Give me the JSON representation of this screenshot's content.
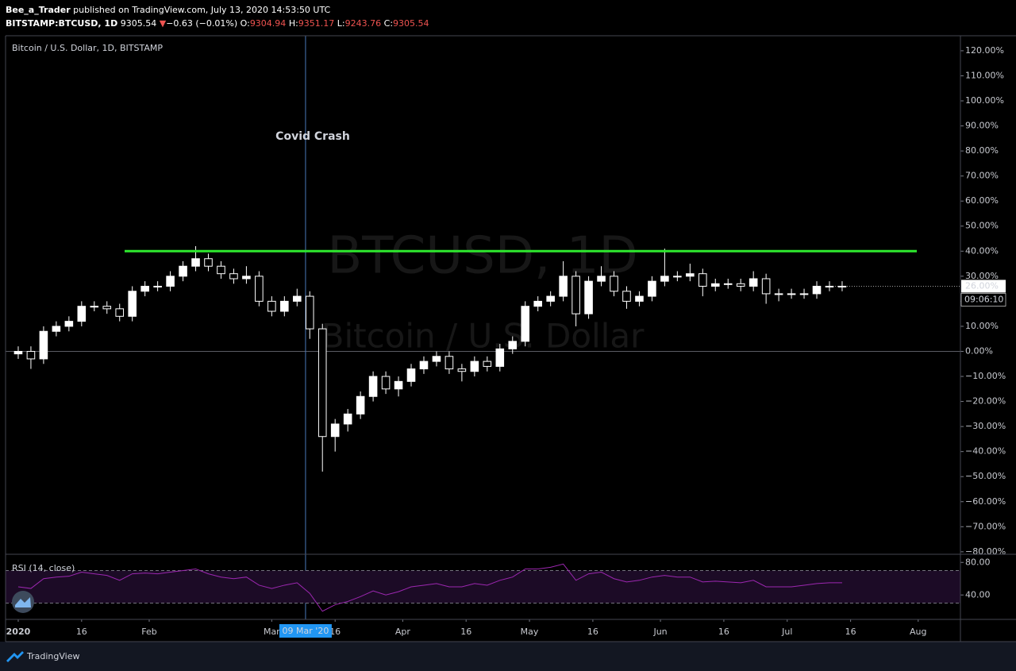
{
  "header": {
    "publisher": "Bee_a_Trader",
    "published": "published on TradingView.com, July 13, 2020 14:53:50 UTC",
    "symbol": "BITSTAMP:BTCUSD, 1D",
    "price": "9305.54",
    "change_arrow": "▼",
    "change": "−0.63 (−0.01%)",
    "ohlc": [
      {
        "label": "O:",
        "value": "9304.94"
      },
      {
        "label": "H:",
        "value": "9351.17"
      },
      {
        "label": "L:",
        "value": "9243.76"
      },
      {
        "label": "C:",
        "value": "9305.54"
      }
    ]
  },
  "footer": {
    "brand": "TradingView"
  },
  "chart_data": [
    {
      "type": "candlestick",
      "title": "Bitcoin / U.S. Dollar, 1D, BITSTAMP",
      "watermark": [
        "BTCUSD, 1D",
        "Bitcoin / U.S. Dollar"
      ],
      "x": [
        0,
        3,
        6,
        9,
        12,
        15,
        18,
        21,
        24,
        27,
        30,
        33,
        36,
        39,
        42,
        45,
        48,
        51,
        54,
        57,
        60,
        63,
        66,
        69,
        72,
        75,
        78,
        81,
        84,
        87,
        90,
        93,
        96,
        99,
        102,
        105,
        108,
        111,
        114,
        117,
        120,
        123,
        126,
        129,
        132,
        135,
        138,
        141,
        144,
        147,
        150,
        153,
        156,
        159,
        162,
        165,
        168,
        171,
        174,
        177,
        180,
        183,
        186,
        189,
        192,
        195
      ],
      "open": [
        -1,
        0,
        -3,
        8,
        10,
        12,
        18,
        18,
        17,
        14,
        24,
        26,
        26,
        30,
        34,
        37,
        34,
        31,
        29,
        30,
        20,
        16,
        20,
        22,
        9,
        -34,
        -29,
        -25,
        -18,
        -10,
        -15,
        -12,
        -7,
        -4,
        -2,
        -7,
        -8,
        -4,
        -6,
        1,
        4,
        18,
        20,
        22,
        30,
        15,
        28,
        30,
        24,
        20,
        22,
        28,
        30,
        30,
        31,
        26,
        27,
        27,
        26,
        29,
        23,
        23,
        23,
        23,
        26,
        26
      ],
      "high": [
        2,
        2,
        10,
        12,
        14,
        20,
        20,
        20,
        19,
        26,
        28,
        28,
        32,
        36,
        42,
        39,
        36,
        33,
        34,
        32,
        22,
        22,
        25,
        24,
        11,
        -27,
        -23,
        -16,
        -8,
        -8,
        -10,
        -5,
        -2,
        0,
        0,
        -5,
        -2,
        -2,
        3,
        6,
        20,
        22,
        24,
        36,
        32,
        30,
        34,
        32,
        26,
        24,
        30,
        41,
        32,
        35,
        33,
        29,
        29,
        29,
        32,
        31,
        25,
        25,
        25,
        28,
        28,
        28
      ],
      "low": [
        -3,
        -7,
        -5,
        6,
        8,
        10,
        16,
        15,
        12,
        12,
        22,
        24,
        24,
        28,
        32,
        32,
        29,
        27,
        27,
        18,
        14,
        14,
        18,
        5,
        -48,
        -40,
        -32,
        -27,
        -20,
        -17,
        -18,
        -14,
        -9,
        -6,
        -9,
        -12,
        -10,
        -8,
        -8,
        -1,
        2,
        16,
        18,
        20,
        10,
        13,
        26,
        22,
        17,
        18,
        20,
        26,
        28,
        28,
        22,
        24,
        25,
        24,
        24,
        19,
        20,
        21,
        21,
        21,
        24,
        24
      ],
      "close": [
        0,
        -3,
        8,
        10,
        12,
        18,
        18,
        17,
        14,
        24,
        26,
        26,
        30,
        34,
        37,
        34,
        31,
        29,
        30,
        20,
        16,
        20,
        22,
        9,
        -34,
        -29,
        -25,
        -18,
        -10,
        -15,
        -12,
        -7,
        -4,
        -2,
        -7,
        -8,
        -4,
        -6,
        1,
        4,
        18,
        20,
        22,
        30,
        15,
        28,
        30,
        24,
        20,
        22,
        28,
        30,
        30,
        31,
        26,
        27,
        27,
        26,
        29,
        23,
        23,
        23,
        23,
        26,
        26,
        26
      ],
      "up_color": "#ffffff",
      "down_color": "#000000",
      "wick_color": "#ffffff",
      "xlim": [
        -3,
        223
      ],
      "ylim": [
        -81,
        126
      ],
      "yticks": [
        {
          "value": 120,
          "label": "120.00%"
        },
        {
          "value": 110,
          "label": "110.00%"
        },
        {
          "value": 100,
          "label": "100.00%"
        },
        {
          "value": 90,
          "label": "90.00%"
        },
        {
          "value": 80,
          "label": "80.00%"
        },
        {
          "value": 70,
          "label": "70.00%"
        },
        {
          "value": 60,
          "label": "60.00%"
        },
        {
          "value": 50,
          "label": "50.00%"
        },
        {
          "value": 40,
          "label": "40.00%"
        },
        {
          "value": 30,
          "label": "30.00%"
        },
        {
          "value": 20,
          "label": "20.00%"
        },
        {
          "value": 10,
          "label": "10.00%"
        },
        {
          "value": 0,
          "label": "0.00%"
        },
        {
          "value": -10,
          "label": "−10.00%"
        },
        {
          "value": -20,
          "label": "−20.00%"
        },
        {
          "value": -30,
          "label": "−30.00%"
        },
        {
          "value": -40,
          "label": "−40.00%"
        },
        {
          "value": -50,
          "label": "−50.00%"
        },
        {
          "value": -60,
          "label": "−60.00%"
        },
        {
          "value": -70,
          "label": "−70.00%"
        },
        {
          "value": -80,
          "label": "−80.00%"
        }
      ],
      "xticks": [
        {
          "value": 0,
          "label": "2020"
        },
        {
          "value": 15,
          "label": "16"
        },
        {
          "value": 31,
          "label": "Feb"
        },
        {
          "value": 60,
          "label": "Mar"
        },
        {
          "value": 75,
          "label": "16"
        },
        {
          "value": 91,
          "label": "Apr"
        },
        {
          "value": 106,
          "label": "16"
        },
        {
          "value": 121,
          "label": "May"
        },
        {
          "value": 136,
          "label": "16"
        },
        {
          "value": 152,
          "label": "Jun"
        },
        {
          "value": 167,
          "label": "16"
        },
        {
          "value": 182,
          "label": "Jul"
        },
        {
          "value": 197,
          "label": "16"
        },
        {
          "value": 213,
          "label": "Aug"
        }
      ],
      "base_line": 0,
      "level_line": {
        "value": 40,
        "color": "#2ee82e"
      },
      "annotation": {
        "text": "Covid Crash",
        "color": "#2ee82e"
      },
      "crosshair": {
        "value": 68,
        "label": "09 Mar '20"
      },
      "last_price": {
        "value": 26,
        "label": "26.00%",
        "countdown": "09:06:10"
      },
      "grid": false
    },
    {
      "type": "line",
      "title": "RSI (14, close)",
      "x": [
        0,
        3,
        6,
        9,
        12,
        15,
        18,
        21,
        24,
        27,
        30,
        33,
        36,
        39,
        42,
        45,
        48,
        51,
        54,
        57,
        60,
        63,
        66,
        69,
        72,
        75,
        78,
        81,
        84,
        87,
        90,
        93,
        96,
        99,
        102,
        105,
        108,
        111,
        114,
        117,
        120,
        123,
        126,
        129,
        132,
        135,
        138,
        141,
        144,
        147,
        150,
        153,
        156,
        159,
        162,
        165,
        168,
        171,
        174,
        177,
        180,
        183,
        186,
        189,
        192,
        195
      ],
      "values": [
        50,
        48,
        60,
        62,
        63,
        68,
        66,
        64,
        58,
        66,
        67,
        66,
        68,
        70,
        72,
        66,
        62,
        60,
        62,
        52,
        48,
        52,
        55,
        42,
        20,
        28,
        32,
        38,
        45,
        40,
        44,
        50,
        52,
        54,
        50,
        50,
        54,
        52,
        58,
        62,
        72,
        72,
        74,
        78,
        58,
        66,
        68,
        60,
        56,
        58,
        62,
        64,
        62,
        62,
        56,
        57,
        56,
        55,
        58,
        50,
        50,
        50,
        52,
        54,
        55,
        55
      ],
      "color": "#9c27b0",
      "xlim": [
        -3,
        223
      ],
      "ylim": [
        10,
        90
      ],
      "yticks": [
        {
          "value": 80,
          "label": "80.00"
        },
        {
          "value": 40,
          "label": "40.00"
        }
      ],
      "bands": [
        70,
        30
      ],
      "band_fill": "#1c0b26"
    }
  ]
}
